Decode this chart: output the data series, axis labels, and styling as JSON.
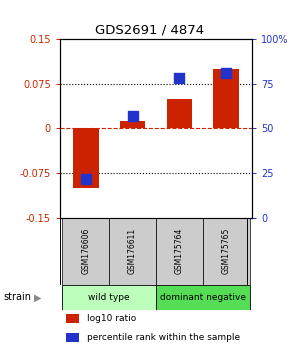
{
  "title": "GDS2691 / 4874",
  "samples": [
    "GSM176606",
    "GSM176611",
    "GSM175764",
    "GSM175765"
  ],
  "log10_ratio": [
    -0.1,
    0.012,
    0.05,
    0.1
  ],
  "percentile_rank": [
    22,
    57,
    78,
    81
  ],
  "ylim_left": [
    -0.15,
    0.15
  ],
  "ylim_right": [
    0,
    100
  ],
  "yticks_left": [
    -0.15,
    -0.075,
    0,
    0.075,
    0.15
  ],
  "yticks_right": [
    0,
    25,
    50,
    75,
    100
  ],
  "ytick_labels_left": [
    "-0.15",
    "-0.075",
    "0",
    "0.075",
    "0.15"
  ],
  "ytick_labels_right": [
    "0",
    "25",
    "50",
    "75",
    "100%"
  ],
  "hlines_dotted": [
    -0.075,
    0.075
  ],
  "hline_dashed": 0,
  "red_color": "#cc2200",
  "blue_color": "#2233cc",
  "bar_width": 0.55,
  "blue_square_size": 55,
  "groups": [
    {
      "label": "wild type",
      "samples": [
        0,
        1
      ],
      "color": "#bbffbb"
    },
    {
      "label": "dominant negative",
      "samples": [
        2,
        3
      ],
      "color": "#55dd55"
    }
  ],
  "legend_red": "log10 ratio",
  "legend_blue": "percentile rank within the sample",
  "strain_label": "strain",
  "sample_box_color": "#cccccc",
  "background_color": "#ffffff"
}
